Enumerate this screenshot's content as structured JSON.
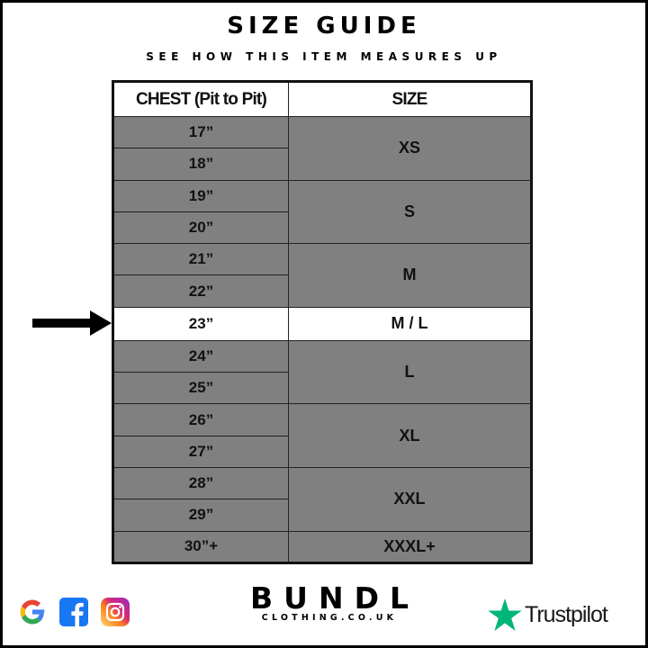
{
  "header": {
    "title": "SIZE GUIDE",
    "subtitle": "SEE HOW THIS ITEM MEASURES UP"
  },
  "table": {
    "columns": [
      "CHEST (Pit to Pit)",
      "SIZE"
    ],
    "rows": [
      {
        "chest": "17”",
        "size": "XS",
        "span": 2
      },
      {
        "chest": "18”"
      },
      {
        "chest": "19”",
        "size": "S",
        "span": 2
      },
      {
        "chest": "20”"
      },
      {
        "chest": "21”",
        "size": "M",
        "span": 2
      },
      {
        "chest": "22”"
      },
      {
        "chest": "23”",
        "size": "M / L",
        "span": 1,
        "highlighted": true
      },
      {
        "chest": "24”",
        "size": "L",
        "span": 2
      },
      {
        "chest": "25”"
      },
      {
        "chest": "26”",
        "size": "XL",
        "span": 2
      },
      {
        "chest": "27”"
      },
      {
        "chest": "28”",
        "size": "XXL",
        "span": 2
      },
      {
        "chest": "29”"
      },
      {
        "chest": "30”+",
        "size": "XXXL+",
        "span": 1
      }
    ]
  },
  "indicator": {
    "icon": "arrow-right-icon"
  },
  "footer": {
    "social_icons": [
      "google-icon",
      "facebook-icon",
      "instagram-icon"
    ],
    "brand": "BUNDL",
    "brand_sub": "CLOTHING.CO.UK",
    "review": "Trustpilot",
    "review_color": "#00b67a"
  }
}
